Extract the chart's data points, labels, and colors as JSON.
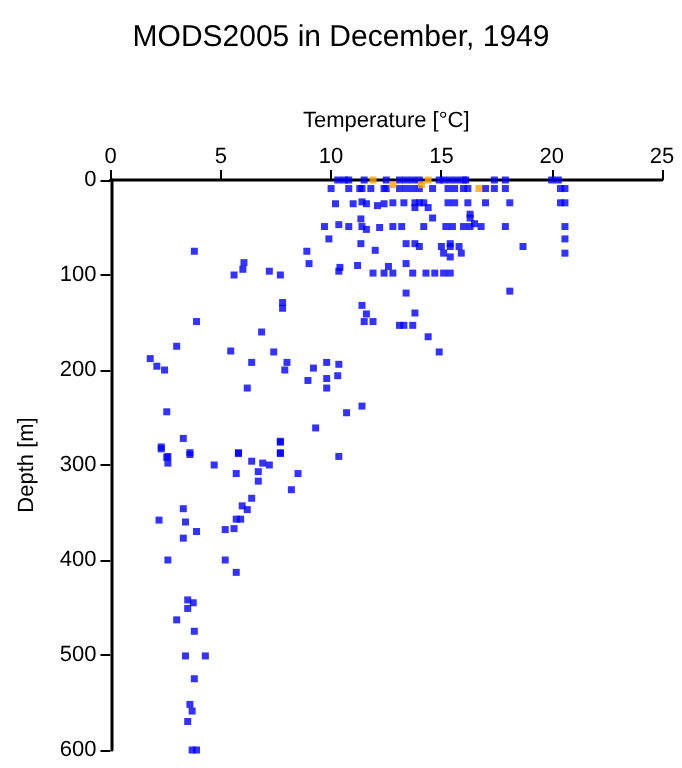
{
  "chart_data": {
    "type": "scatter",
    "title": "MODS2005 in December, 1949",
    "xlabel": "Temperature [°C]",
    "ylabel": "Depth [m]",
    "xlim": [
      0,
      25
    ],
    "xticks": [
      0,
      5,
      10,
      15,
      20,
      25
    ],
    "ylim": [
      600,
      0
    ],
    "yticks": [
      0,
      100,
      200,
      300,
      400,
      500,
      600
    ],
    "marker": "square",
    "series": [
      {
        "color": "#0000ff",
        "x": [
          3.8,
          6.05,
          5.6,
          6.0,
          7.2,
          7.7,
          8.9,
          9.0,
          9.7,
          9.9,
          10.35,
          10.4,
          10.35,
          11.2,
          11.9,
          12.4,
          7.8,
          7.8,
          3.9,
          6.85,
          3.0,
          1.8,
          2.1,
          2.45,
          5.45,
          6.4,
          7.4,
          8.0,
          7.9,
          6.2,
          8.95,
          9.2,
          9.8,
          10.35,
          9.8,
          10.3,
          9.8,
          2.55,
          10.7,
          11.4,
          9.3,
          3.3,
          2.3,
          2.55,
          3.6,
          5.8,
          7.7,
          7.7,
          10.35,
          11.4,
          11.6,
          11.5,
          11.9,
          11.35,
          11.6,
          12.0,
          12.2,
          10.2,
          11.0,
          11.4,
          11.6,
          12.1,
          12.4,
          10.0,
          10.8,
          11.4,
          11.8,
          12.4,
          10.8,
          11.4,
          11.35,
          10.3,
          10.6,
          10.8,
          11.5,
          12.5,
          13.1,
          13.4,
          13.7,
          14.0,
          14.9,
          15.1,
          15.4,
          15.7,
          16.0,
          16.1,
          17.4,
          17.9,
          20.0,
          20.3,
          11.3,
          12.5,
          13.1,
          13.4,
          13.7,
          14.0,
          14.6,
          15.3,
          15.6,
          16.0,
          16.2,
          17.0,
          17.4,
          17.9,
          20.4,
          20.6,
          12.8,
          13.3,
          13.8,
          14.0,
          14.2,
          15.3,
          15.6,
          16.2,
          17.0,
          18.1,
          20.4,
          20.6,
          13.8,
          14.4,
          14.6,
          16.5,
          16.3,
          16.3,
          12.8,
          13.2,
          14.2,
          15.2,
          15.5,
          16.0,
          16.3,
          16.8,
          17.9,
          20.6,
          20.6,
          13.4,
          13.8,
          15.4,
          14.0,
          15.0,
          15.4,
          15.8,
          18.7,
          15.1,
          15.9,
          20.6,
          15.4,
          13.4,
          12.6,
          12.8,
          13.7,
          14.3,
          14.7,
          15.1,
          15.4,
          18.1,
          13.4,
          13.8,
          13.1,
          13.3,
          13.7,
          14.4,
          14.9,
          2.3,
          2.6,
          2.6,
          2.2,
          3.6,
          3.3,
          3.4,
          3.3,
          3.9,
          2.6,
          4.7,
          5.7,
          5.8,
          6.4,
          6.7,
          6.9,
          6.7,
          7.2,
          7.7,
          7.7,
          8.5,
          8.2,
          6.4,
          5.97,
          6.2,
          5.7,
          5.9,
          5.6,
          5.2,
          5.2,
          5.7,
          3.5,
          3.75,
          3.5,
          3.0,
          3.8,
          3.4,
          4.3,
          3.8,
          3.6,
          3.7,
          3.5,
          3.7,
          3.9
        ],
        "values": [
          75,
          87,
          100,
          94,
          96,
          100,
          75,
          88,
          49,
          62,
          47,
          92,
          96,
          90,
          98,
          98,
          129,
          135,
          149,
          160,
          175,
          188,
          196,
          200,
          180,
          192,
          181,
          192,
          200,
          219,
          211,
          198,
          192,
          194,
          209,
          206,
          219,
          244,
          245,
          238,
          261,
          272,
          283,
          292,
          289,
          288,
          276,
          288,
          291,
          132,
          141,
          149,
          149,
          67,
          52,
          74,
          50,
          25,
          25,
          23,
          25,
          27,
          25,
          9,
          9,
          9,
          9,
          9,
          49,
          49,
          41,
          0,
          0,
          0,
          0,
          0,
          0,
          0,
          0,
          0,
          0,
          0,
          0,
          0,
          0,
          0,
          0,
          0,
          0,
          0,
          9,
          9,
          9,
          9,
          9,
          9,
          9,
          9,
          9,
          9,
          9,
          9,
          9,
          9,
          9,
          9,
          24,
          24,
          24,
          24,
          24,
          24,
          24,
          24,
          24,
          24,
          24,
          24,
          29,
          29,
          40,
          46,
          40,
          36,
          49,
          49,
          49,
          49,
          49,
          49,
          49,
          49,
          49,
          49,
          62,
          67,
          67,
          67,
          70,
          70,
          70,
          70,
          70,
          77,
          77,
          77,
          81,
          88,
          91,
          98,
          98,
          98,
          98,
          98,
          98,
          117,
          119,
          140,
          153,
          153,
          153,
          165,
          181,
          281,
          291,
          298,
          358,
          287,
          346,
          360,
          377,
          370,
          400,
          300,
          309,
          287,
          296,
          307,
          298,
          317,
          300,
          275,
          287,
          309,
          326,
          335,
          343,
          347,
          357,
          357,
          367,
          368,
          400,
          413,
          442,
          445,
          451,
          463,
          475,
          501,
          501,
          525,
          552,
          559,
          570,
          600,
          600
        ]
      },
      {
        "color": "#ffa500",
        "x": [
          11.9,
          12.8,
          14.1,
          14.4,
          16.7
        ],
        "values": [
          0,
          5,
          5,
          0,
          9
        ]
      }
    ]
  }
}
